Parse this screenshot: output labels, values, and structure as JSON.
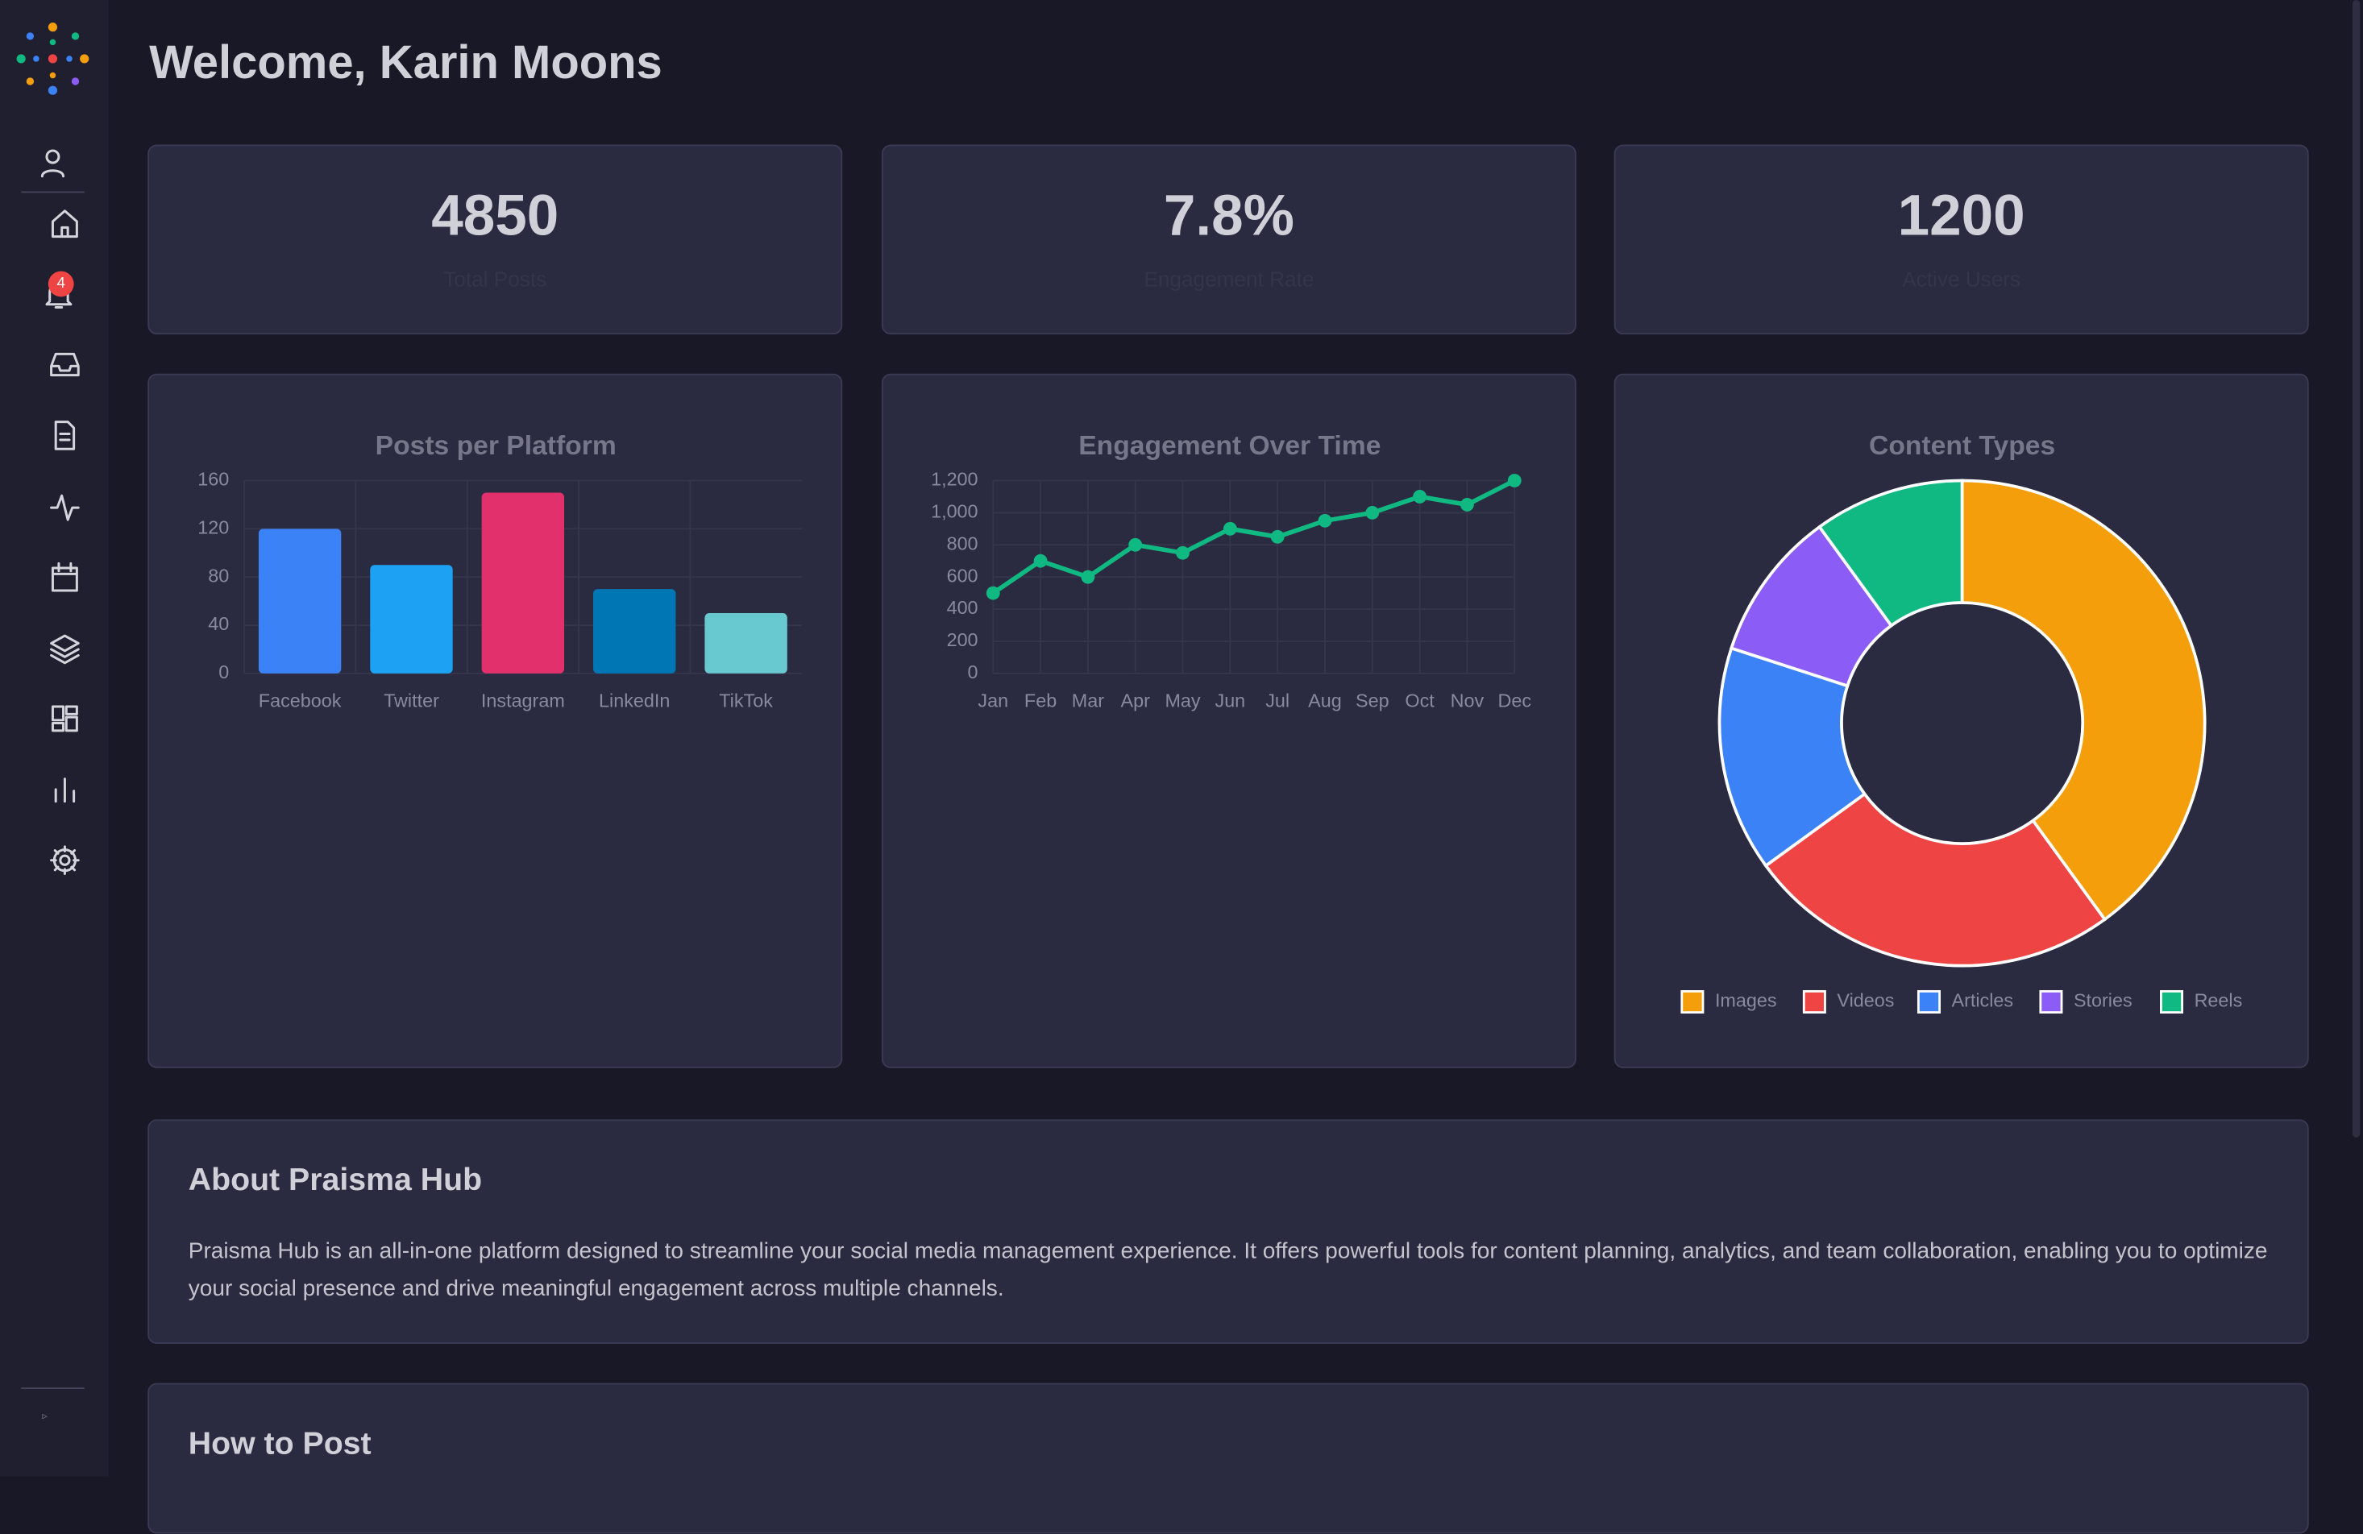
{
  "header": {
    "title": "Welcome, Karin Moons"
  },
  "sidebar": {
    "badge": "4",
    "footer": "▹"
  },
  "stats": [
    {
      "value": "4850",
      "label": "Total Posts"
    },
    {
      "value": "7.8%",
      "label": "Engagement Rate"
    },
    {
      "value": "1200",
      "label": "Active Users"
    }
  ],
  "charts": [
    {
      "type": "bar",
      "title": "Posts per Platform",
      "categories": [
        "Facebook",
        "Twitter",
        "Instagram",
        "LinkedIn",
        "TikTok"
      ],
      "values": [
        120,
        90,
        150,
        70,
        50
      ],
      "colors": [
        "#3b82f6",
        "#1da1f2",
        "#e1306c",
        "#0077b5",
        "#69c9d0"
      ],
      "ylim": [
        0,
        160
      ],
      "yticks": [
        0,
        40,
        80,
        120,
        160
      ],
      "grid": true
    },
    {
      "type": "line",
      "title": "Engagement Over Time",
      "categories": [
        "Jan",
        "Feb",
        "Mar",
        "Apr",
        "May",
        "Jun",
        "Jul",
        "Aug",
        "Sep",
        "Oct",
        "Nov",
        "Dec"
      ],
      "values": [
        500,
        700,
        600,
        800,
        750,
        900,
        850,
        950,
        1000,
        1100,
        1050,
        1200
      ],
      "color": "#10b981",
      "ylim": [
        0,
        1200
      ],
      "yticks": [
        0,
        200,
        400,
        600,
        800,
        {
          "value": 1000,
          "label": "1,000"
        },
        {
          "value": 1200,
          "label": "1,200"
        }
      ],
      "grid": true
    },
    {
      "type": "donut",
      "title": "Content Types",
      "categories": [
        "Images",
        "Videos",
        "Articles",
        "Stories",
        "Reels"
      ],
      "values": [
        40,
        25,
        15,
        10,
        10
      ],
      "colors": [
        "#f59e0b",
        "#ef4444",
        "#3b82f6",
        "#8b5cf6",
        "#10b981"
      ],
      "legend": "bottom"
    }
  ],
  "about": {
    "title": "About Praisma Hub",
    "text": "Praisma Hub is an all-in-one platform designed to streamline your social media management experience. It offers powerful tools for content planning, analytics, and team collaboration, enabling you to optimize your social presence and drive meaningful engagement across multiple channels."
  },
  "how_to": {
    "title": "How to Post"
  }
}
